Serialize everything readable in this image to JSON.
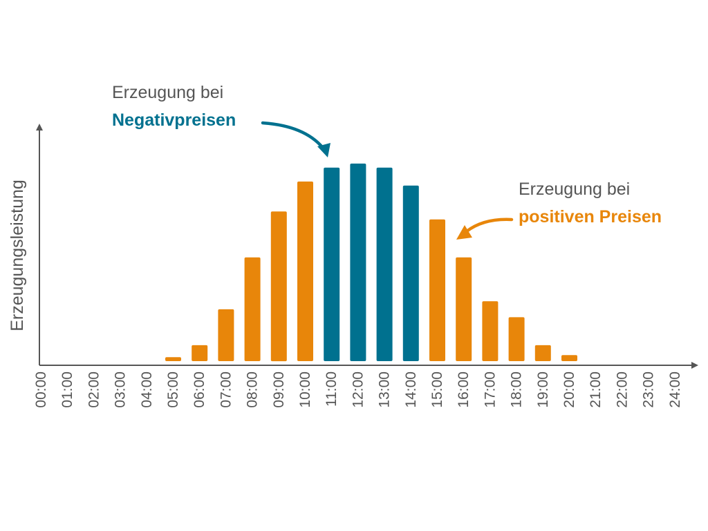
{
  "chart_data": {
    "type": "bar",
    "title": "",
    "xlabel": "",
    "ylabel": "Erzeugungsleistung",
    "grid": false,
    "legend": "none",
    "categories": [
      "00:00",
      "01:00",
      "02:00",
      "03:00",
      "04:00",
      "05:00",
      "06:00",
      "07:00",
      "08:00",
      "09:00",
      "10:00",
      "11:00",
      "12:00",
      "13:00",
      "14:00",
      "15:00",
      "16:00",
      "17:00",
      "18:00",
      "19:00",
      "20:00",
      "21:00",
      "22:00",
      "23:00",
      "24:00"
    ],
    "values": [
      0,
      0,
      0,
      0,
      0,
      2,
      8,
      26,
      52,
      75,
      90,
      97,
      99,
      97,
      88,
      71,
      52,
      30,
      22,
      8,
      3,
      0,
      0,
      0,
      0
    ],
    "price_type": [
      "positive",
      "positive",
      "positive",
      "positive",
      "positive",
      "positive",
      "positive",
      "positive",
      "positive",
      "positive",
      "positive",
      "negative",
      "negative",
      "negative",
      "negative",
      "positive",
      "positive",
      "positive",
      "positive",
      "positive",
      "positive",
      "positive",
      "positive",
      "positive",
      "positive"
    ],
    "ylim": [
      0,
      100
    ],
    "colors": {
      "positive": "#E8860A",
      "negative": "#00718F",
      "axis": "#555555"
    },
    "annotations": [
      {
        "name": "annotation-negative",
        "line1": "Erzeugung bei",
        "line2": "Negativpreisen",
        "color": "#00718F",
        "target": "11:00"
      },
      {
        "name": "annotation-positive",
        "line1": "Erzeugung bei",
        "line2": "positiven Preisen",
        "color": "#E8860A",
        "target": "16:00"
      }
    ]
  }
}
